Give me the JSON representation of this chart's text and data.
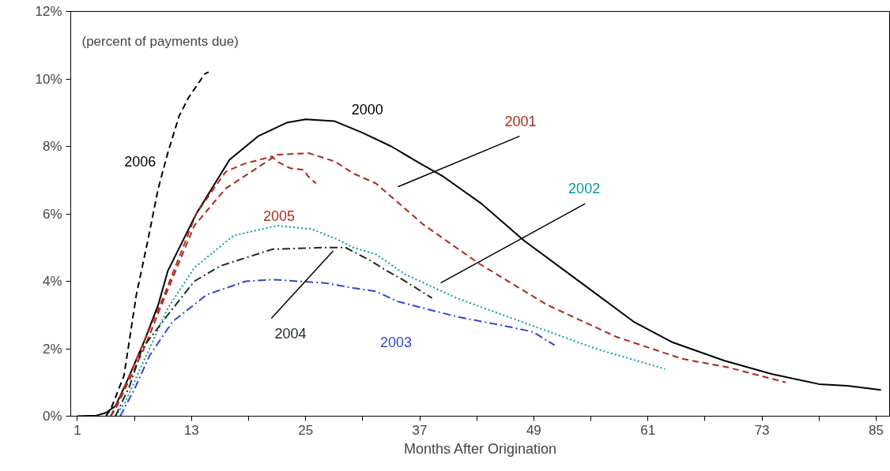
{
  "chart_data": {
    "type": "line",
    "xlabel": "Months After Origination",
    "annotations": [
      "(percent of payments due)"
    ],
    "xlim": [
      0.3,
      86.5
    ],
    "ylim": [
      0,
      12
    ],
    "xticks": [
      1,
      {
        "value": 7,
        "label": null
      },
      13,
      {
        "value": 19,
        "label": null
      },
      25,
      {
        "value": 31,
        "label": null
      },
      37,
      {
        "value": 43,
        "label": null
      },
      49,
      {
        "value": 55,
        "label": null
      },
      61,
      {
        "value": 67,
        "label": null
      },
      73,
      {
        "value": 79,
        "label": null
      },
      85
    ],
    "yticks": [
      {
        "value": 0,
        "label": "0%"
      },
      {
        "value": 2,
        "label": "2%"
      },
      {
        "value": 4,
        "label": "4%"
      },
      {
        "value": 6,
        "label": "6%"
      },
      {
        "value": 8,
        "label": "8%"
      },
      {
        "value": 10,
        "label": "10%"
      },
      {
        "value": 12,
        "label": "12%"
      }
    ],
    "grid": false,
    "legend": false,
    "marker": "none",
    "series": [
      {
        "name": "2000",
        "color": "#000000",
        "line_style": "solid",
        "x": [
          1,
          3,
          4,
          5,
          6,
          8,
          9.5,
          10.5,
          13.5,
          17,
          20,
          23,
          25,
          28,
          31,
          34,
          37,
          39.5,
          43.5,
          48,
          54,
          59.5,
          63.5,
          69,
          74,
          79,
          82,
          85.5
        ],
        "values": [
          0,
          0.02,
          0.1,
          0.3,
          0.9,
          2.2,
          3.3,
          4.3,
          6.0,
          7.6,
          8.3,
          8.7,
          8.8,
          8.75,
          8.4,
          8.0,
          7.5,
          7.1,
          6.3,
          5.2,
          3.95,
          2.8,
          2.2,
          1.65,
          1.25,
          0.95,
          0.9,
          0.78
        ]
      },
      {
        "name": "2001",
        "color": "#a52a1e",
        "line_style": "dashed",
        "x": [
          4.5,
          5,
          6,
          8,
          10,
          13.3,
          16.6,
          22,
          25.3,
          28.1,
          30,
          32.4,
          37.3,
          43.1,
          50.4,
          57.7,
          64.6,
          69.4,
          75.5
        ],
        "values": [
          0,
          0.2,
          0.8,
          2.0,
          3.4,
          5.65,
          6.75,
          7.75,
          7.8,
          7.55,
          7.2,
          6.9,
          5.7,
          4.55,
          3.3,
          2.35,
          1.7,
          1.45,
          1.0
        ]
      },
      {
        "name": "2002",
        "color": "#009a9a",
        "line_style": "dotted",
        "x": [
          5,
          6,
          7.6,
          10.5,
          13.3,
          17.4,
          22,
          25.6,
          28.3,
          30,
          32.4,
          35.5,
          40.9,
          48.2,
          55.5,
          62.8
        ],
        "values": [
          0,
          0.4,
          1.4,
          3.2,
          4.4,
          5.35,
          5.65,
          5.55,
          5.25,
          5.0,
          4.8,
          4.2,
          3.5,
          2.75,
          2.0,
          1.4
        ]
      },
      {
        "name": "2003",
        "color": "#3344cc",
        "line_style": "dashdot",
        "x": [
          5.5,
          7,
          8.6,
          11,
          14.6,
          18.7,
          21.5,
          27,
          30,
          32.4,
          34.7,
          40.9,
          46.4,
          48.9,
          51.2
        ],
        "values": [
          0,
          0.8,
          1.8,
          2.8,
          3.6,
          4.0,
          4.05,
          3.95,
          3.8,
          3.7,
          3.4,
          2.95,
          2.65,
          2.5,
          2.1
        ]
      },
      {
        "name": "2004",
        "color": "#1a2e1a",
        "line_style": "dashdot",
        "x": [
          5,
          6.5,
          7.8,
          10.5,
          13.3,
          16,
          21.5,
          27,
          29.2,
          31.9,
          33.6,
          35.2,
          38.3
        ],
        "values": [
          0,
          0.9,
          2.0,
          3.0,
          4.0,
          4.45,
          4.95,
          5.0,
          5.0,
          4.6,
          4.3,
          4.05,
          3.5
        ]
      },
      {
        "name": "2005",
        "color": "#b5281e",
        "line_style": "dashed",
        "x": [
          4.5,
          5,
          6,
          8,
          10,
          13.5,
          16.6,
          18.7,
          21.5,
          22,
          23.4,
          24.8,
          25.3,
          26.1
        ],
        "values": [
          0,
          0.3,
          0.9,
          2.2,
          3.5,
          6.0,
          7.25,
          7.5,
          7.7,
          7.55,
          7.35,
          7.3,
          7.1,
          6.9
        ]
      },
      {
        "name": "2006",
        "color": "#000000",
        "line_style": "dashed",
        "x": [
          4,
          4.5,
          5.9,
          7.2,
          8.4,
          9.5,
          10.5,
          11.7,
          12.7,
          14.4,
          14.8
        ],
        "values": [
          0,
          0.2,
          1.2,
          3.6,
          5.2,
          6.75,
          7.8,
          8.9,
          9.45,
          10.15,
          10.2
        ]
      }
    ]
  }
}
